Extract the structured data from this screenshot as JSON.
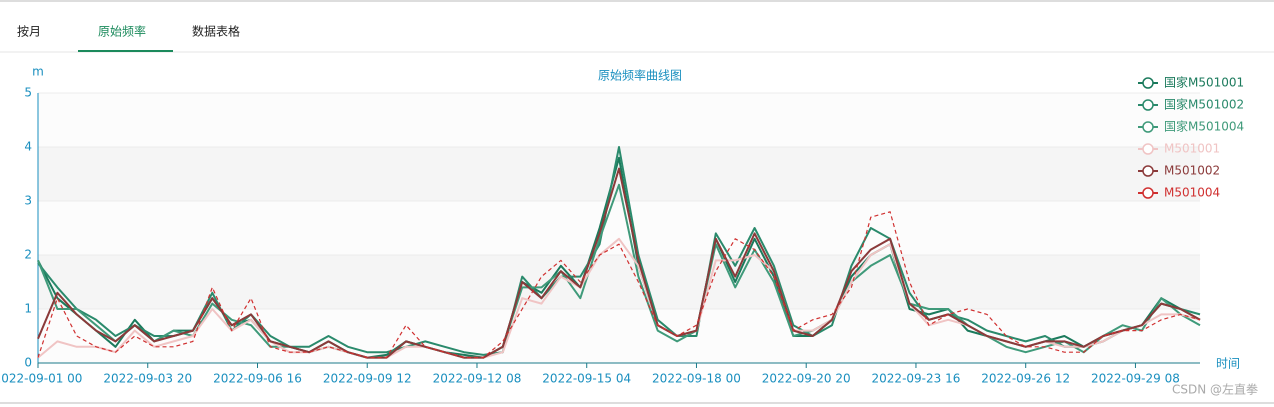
{
  "tabs": [
    "按月",
    "原始频率",
    "数据表格"
  ],
  "watermark": "CSDN @左直拳",
  "chart_data": {
    "type": "line",
    "title": "原始频率曲线图",
    "y_label": "m",
    "x_label": "时间",
    "x": [
      "2022-09-01 00",
      "2022-09-01 12",
      "2022-09-02 00",
      "2022-09-02 12",
      "2022-09-03 00",
      "2022-09-03 12",
      "2022-09-04 00",
      "2022-09-04 12",
      "2022-09-05 00",
      "2022-09-05 12",
      "2022-09-06 00",
      "2022-09-06 12",
      "2022-09-07 00",
      "2022-09-07 12",
      "2022-09-08 00",
      "2022-09-08 12",
      "2022-09-09 00",
      "2022-09-09 12",
      "2022-09-10 00",
      "2022-09-10 12",
      "2022-09-11 00",
      "2022-09-11 12",
      "2022-09-12 00",
      "2022-09-12 12",
      "2022-09-13 00",
      "2022-09-13 12",
      "2022-09-14 00",
      "2022-09-14 12",
      "2022-09-15 00",
      "2022-09-15 12",
      "2022-09-16 00",
      "2022-09-16 12",
      "2022-09-17 00",
      "2022-09-17 12",
      "2022-09-18 00",
      "2022-09-18 12",
      "2022-09-19 00",
      "2022-09-19 12",
      "2022-09-20 00",
      "2022-09-20 12",
      "2022-09-21 00",
      "2022-09-21 12",
      "2022-09-22 00",
      "2022-09-22 12",
      "2022-09-23 00",
      "2022-09-23 12",
      "2022-09-24 00",
      "2022-09-24 12",
      "2022-09-25 00",
      "2022-09-25 12",
      "2022-09-26 00",
      "2022-09-26 12",
      "2022-09-27 00",
      "2022-09-27 12",
      "2022-09-28 00",
      "2022-09-28 12",
      "2022-09-29 00",
      "2022-09-29 12",
      "2022-09-30 00",
      "2022-09-30 12",
      "2022-10-01 00"
    ],
    "xlim": [
      "2022-09-01 00",
      "2022-10-01 00"
    ],
    "xticks": [
      "2022-09-01 00",
      "2022-09-03 20",
      "2022-09-06 16",
      "2022-09-09 12",
      "2022-09-12 08",
      "2022-09-15 04",
      "2022-09-18 00",
      "2022-09-20 20",
      "2022-09-23 16",
      "2022-09-26 12",
      "2022-09-29 08"
    ],
    "ylim": [
      0,
      5
    ],
    "yticks": [
      0,
      1,
      2,
      3,
      4,
      5
    ],
    "grid": true,
    "legend": "right top",
    "series": [
      {
        "name": "国家M501001",
        "color": "#1b7a5c",
        "values": [
          1.9,
          1.2,
          0.9,
          0.6,
          0.3,
          0.8,
          0.4,
          0.6,
          0.6,
          1.2,
          0.7,
          0.8,
          0.4,
          0.3,
          0.2,
          0.4,
          0.2,
          0.1,
          0.15,
          0.4,
          0.3,
          0.2,
          0.15,
          0.1,
          0.3,
          1.5,
          1.3,
          1.8,
          1.4,
          2.5,
          3.8,
          1.8,
          0.7,
          0.5,
          0.6,
          2.3,
          1.5,
          2.3,
          1.6,
          0.5,
          0.5,
          0.8,
          1.6,
          2.0,
          2.2,
          1.0,
          0.9,
          1.0,
          0.6,
          0.5,
          0.4,
          0.3,
          0.4,
          0.5,
          0.3,
          0.5,
          0.6,
          0.7,
          1.2,
          1.0,
          0.8
        ]
      },
      {
        "name": "国家M501002",
        "color": "#2a8a6c",
        "values": [
          1.85,
          1.4,
          1.0,
          0.8,
          0.5,
          0.7,
          0.5,
          0.5,
          0.6,
          1.3,
          0.6,
          0.9,
          0.5,
          0.3,
          0.3,
          0.5,
          0.3,
          0.2,
          0.2,
          0.3,
          0.4,
          0.3,
          0.2,
          0.15,
          0.2,
          1.6,
          1.2,
          1.6,
          1.6,
          2.2,
          4.0,
          2.0,
          0.8,
          0.5,
          0.5,
          2.4,
          1.8,
          2.5,
          1.8,
          0.7,
          0.5,
          0.7,
          1.8,
          2.5,
          2.3,
          1.3,
          0.8,
          0.9,
          0.8,
          0.6,
          0.5,
          0.4,
          0.5,
          0.3,
          0.3,
          0.4,
          0.6,
          0.7,
          1.1,
          1.0,
          0.9
        ]
      },
      {
        "name": "国家M501004",
        "color": "#3f9a7a",
        "values": [
          1.9,
          1.0,
          1.0,
          0.7,
          0.4,
          0.7,
          0.4,
          0.6,
          0.5,
          1.1,
          0.8,
          0.7,
          0.3,
          0.3,
          0.2,
          0.3,
          0.2,
          0.1,
          0.1,
          0.4,
          0.3,
          0.2,
          0.1,
          0.1,
          0.3,
          1.4,
          1.4,
          1.7,
          1.2,
          2.3,
          3.3,
          1.6,
          0.6,
          0.4,
          0.6,
          2.2,
          1.4,
          2.1,
          1.5,
          0.5,
          0.6,
          0.8,
          1.5,
          1.8,
          2.0,
          1.1,
          1.0,
          1.0,
          0.7,
          0.5,
          0.3,
          0.2,
          0.3,
          0.4,
          0.2,
          0.5,
          0.7,
          0.6,
          1.2,
          0.9,
          0.7
        ]
      },
      {
        "name": "M501001",
        "color": "#f0c4c4",
        "values": [
          0.1,
          0.4,
          0.3,
          0.3,
          0.2,
          0.6,
          0.3,
          0.4,
          0.5,
          1.0,
          0.6,
          0.8,
          0.4,
          0.2,
          0.2,
          0.3,
          0.2,
          0.1,
          0.1,
          0.3,
          0.3,
          0.2,
          0.1,
          0.1,
          0.2,
          1.2,
          1.1,
          1.6,
          1.4,
          2.0,
          2.3,
          1.8,
          0.7,
          0.5,
          0.6,
          1.9,
          1.9,
          2.0,
          1.7,
          0.6,
          0.6,
          0.8,
          1.5,
          2.0,
          2.2,
          1.1,
          0.7,
          0.8,
          0.7,
          0.5,
          0.4,
          0.3,
          0.4,
          0.3,
          0.3,
          0.4,
          0.6,
          0.7,
          0.9,
          0.9,
          0.8
        ]
      },
      {
        "name": "M501002",
        "color": "#8b3a3a",
        "values": [
          0.45,
          1.3,
          0.9,
          0.6,
          0.4,
          0.7,
          0.4,
          0.5,
          0.6,
          1.2,
          0.7,
          0.9,
          0.4,
          0.3,
          0.2,
          0.4,
          0.2,
          0.1,
          0.1,
          0.4,
          0.3,
          0.2,
          0.1,
          0.1,
          0.3,
          1.5,
          1.2,
          1.7,
          1.4,
          2.4,
          3.6,
          1.9,
          0.7,
          0.5,
          0.6,
          2.3,
          1.6,
          2.4,
          1.7,
          0.6,
          0.5,
          0.8,
          1.7,
          2.1,
          2.3,
          1.1,
          0.8,
          0.9,
          0.7,
          0.5,
          0.4,
          0.3,
          0.4,
          0.4,
          0.3,
          0.5,
          0.6,
          0.7,
          1.1,
          1.0,
          0.8
        ]
      },
      {
        "name": "M501004",
        "color": "#d03030",
        "dashed": true,
        "values": [
          0.1,
          1.2,
          0.5,
          0.3,
          0.2,
          0.5,
          0.3,
          0.3,
          0.4,
          1.4,
          0.6,
          1.2,
          0.3,
          0.2,
          0.2,
          0.3,
          0.2,
          0.1,
          0.1,
          0.7,
          0.3,
          0.2,
          0.1,
          0.1,
          0.4,
          1.0,
          1.6,
          1.9,
          1.5,
          2.0,
          2.2,
          1.5,
          0.7,
          0.5,
          0.7,
          1.7,
          2.3,
          2.1,
          1.6,
          0.6,
          0.8,
          0.9,
          1.4,
          2.7,
          2.8,
          1.5,
          0.7,
          0.9,
          1.0,
          0.9,
          0.5,
          0.3,
          0.3,
          0.2,
          0.2,
          0.5,
          0.6,
          0.6,
          0.8,
          0.9,
          0.8
        ]
      }
    ]
  }
}
